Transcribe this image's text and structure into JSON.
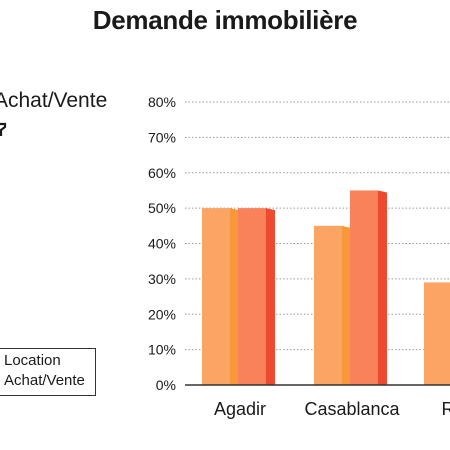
{
  "title": "Demande immobilière",
  "legend_side": {
    "line1": "Achat/Vente"
  },
  "legend_box": {
    "item1": "Location",
    "item2": "Achat/Vente"
  },
  "colors": {
    "location": "#fba464",
    "location_side": "#f8983a",
    "achat_vente": "#f9825a",
    "achat_vente_side": "#ee4a30",
    "grid": "#9a9a9a",
    "axis": "#333333"
  },
  "chart_data": {
    "type": "bar",
    "title": "Demande immobilière",
    "categories": [
      "Agadir",
      "Casablanca",
      "R"
    ],
    "series": [
      {
        "name": "Location",
        "values": [
          50,
          45,
          29
        ]
      },
      {
        "name": "Achat/Vente",
        "values": [
          50,
          55,
          null
        ]
      }
    ],
    "ylim": [
      0,
      80
    ],
    "yticks": [
      "0%",
      "10%",
      "20%",
      "30%",
      "40%",
      "50%",
      "60%",
      "70%",
      "80%"
    ],
    "y_unit": "%",
    "grid": "horizontal dotted",
    "legend": "left"
  }
}
